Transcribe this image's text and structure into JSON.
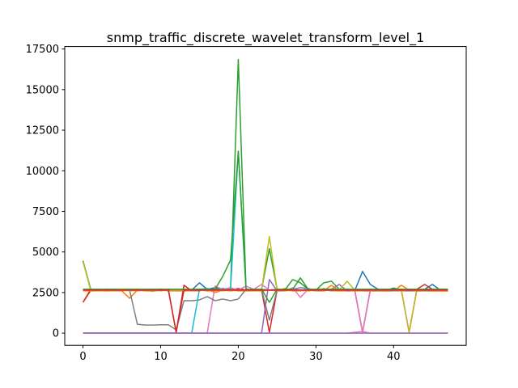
{
  "chart_data": {
    "type": "line",
    "title": "snmp_traffic_discrete_wavelet_transform_level_1",
    "xlabel": "",
    "ylabel": "",
    "xlim": [
      -2.35,
      49.35
    ],
    "ylim": [
      -750,
      17650
    ],
    "x_ticks": [
      0,
      10,
      20,
      30,
      40
    ],
    "y_ticks": [
      0,
      2500,
      5000,
      7500,
      10000,
      12500,
      15000,
      17500
    ],
    "x_tick_labels": [
      "0",
      "10",
      "20",
      "30",
      "40"
    ],
    "y_tick_labels": [
      "0",
      "2500",
      "5000",
      "7500",
      "10000",
      "12500",
      "15000",
      "17500"
    ],
    "grid": false,
    "legend": "none",
    "series": [
      {
        "color": "#1f77b4",
        "values": [
          4450,
          2700,
          2620,
          2660,
          2600,
          2640,
          2620,
          2620,
          2640,
          2590,
          2650,
          2620,
          2600,
          2640,
          2650,
          3100,
          2700,
          2800,
          2650,
          2700,
          2600,
          2650,
          2700,
          2600,
          2650,
          2700,
          2620,
          2700,
          2600,
          2650,
          2680,
          2700,
          2650,
          2600,
          2700,
          2620,
          3800,
          3000,
          2700,
          2620,
          2780,
          2650,
          2700,
          2630,
          2700,
          3000,
          2650,
          2650
        ]
      },
      {
        "color": "#ff7f0e",
        "values": [
          1900,
          2600,
          2600,
          2600,
          2600,
          2600,
          2150,
          2650,
          2600,
          2600,
          2700,
          2600,
          2600,
          2600,
          2600,
          2600,
          2700,
          2500,
          2650,
          2750,
          2600,
          2600,
          2600,
          2600,
          2650,
          2600,
          2750,
          2600,
          2600,
          2650,
          2600,
          2750,
          2600,
          2600,
          2600,
          2600,
          2600,
          2600,
          2600,
          2600,
          2600,
          2950,
          2650,
          2600,
          2600,
          2600,
          2600,
          2600
        ]
      },
      {
        "color": "#2ca02c",
        "values": [
          4450,
          2650,
          2700,
          2650,
          2700,
          2650,
          2700,
          2650,
          2650,
          2700,
          2650,
          2700,
          2650,
          2700,
          2650,
          2700,
          2700,
          2700,
          2650,
          2700,
          16850,
          2700,
          2650,
          2700,
          5200,
          2700,
          2650,
          3300,
          3100,
          2700,
          2650,
          3100,
          3200,
          2700,
          2650,
          2700,
          2650,
          2700,
          2650,
          2700,
          2650,
          2700,
          2650,
          2700,
          2650,
          2700,
          2650,
          2650
        ]
      },
      {
        "color": "#d62728",
        "values": [
          1900,
          2700,
          2650,
          2700,
          2650,
          2650,
          2650,
          2700,
          2600,
          2650,
          2700,
          2650,
          50,
          2950,
          2600,
          2650,
          2700,
          2650,
          2750,
          2650,
          2750,
          2650,
          2700,
          2650,
          50,
          2650,
          2700,
          2650,
          2600,
          2700,
          2650,
          2700,
          2650,
          2650,
          2700,
          2650,
          50,
          2650,
          2600,
          2650,
          2650,
          2650,
          50,
          2700,
          3000,
          2700,
          2650,
          2650
        ]
      },
      {
        "color": "#9467bd",
        "values": [
          0,
          0,
          0,
          0,
          0,
          0,
          0,
          0,
          0,
          0,
          0,
          0,
          0,
          0,
          0,
          0,
          0,
          0,
          0,
          0,
          0,
          0,
          0,
          0,
          3300,
          2600,
          2600,
          2700,
          2800,
          2750,
          2600,
          2600,
          2700,
          3000,
          2600,
          2650,
          2600,
          2600,
          2600,
          2600,
          2600,
          2600,
          2600,
          2600,
          2600,
          2600,
          2600,
          2600
        ]
      },
      {
        "color": "#8c564b",
        "values": [
          2650,
          2650,
          2650,
          2650,
          2650,
          2650,
          2650,
          2650,
          2650,
          2650,
          2650,
          2650,
          2650,
          2650,
          2650,
          2650,
          2650,
          2650,
          2650,
          2650,
          2650,
          2650,
          2650,
          2650,
          2650,
          2650,
          2650,
          2650,
          2650,
          2650,
          2650,
          2650,
          2650,
          2650,
          2650,
          2650,
          2650,
          2650,
          2650,
          2650,
          2650,
          2650,
          2650,
          2650,
          2650,
          2650,
          2650,
          2650
        ]
      },
      {
        "color": "#e377c2",
        "values": [
          0,
          0,
          0,
          0,
          0,
          0,
          0,
          0,
          0,
          0,
          0,
          0,
          0,
          0,
          0,
          0,
          0,
          2900,
          2700,
          2800,
          2650,
          2900,
          2700,
          3000,
          2650,
          2700,
          2600,
          2800,
          2200,
          2700,
          2650,
          2700,
          2600,
          2650,
          2700,
          2600,
          50,
          2700,
          2650,
          2700,
          2650,
          2600,
          2700,
          2650,
          2700,
          2650,
          2700,
          2700
        ]
      },
      {
        "color": "#7f7f7f",
        "values": [
          2650,
          2650,
          2650,
          2650,
          2650,
          2650,
          2650,
          550,
          500,
          500,
          520,
          520,
          200,
          2000,
          2000,
          2050,
          2250,
          2000,
          2100,
          2000,
          2100,
          2700,
          2650,
          2700,
          800,
          2650,
          2650,
          2700,
          2650,
          2650,
          2650,
          2700,
          2650,
          2650,
          2650,
          2650,
          2650,
          2650,
          2650,
          2650,
          2650,
          2650,
          2650,
          2650,
          2650,
          2650,
          2650,
          2650
        ]
      },
      {
        "color": "#bcbd22",
        "values": [
          4400,
          2650,
          2600,
          2650,
          2600,
          2650,
          2600,
          2650,
          2600,
          2650,
          2600,
          2650,
          2600,
          2650,
          2600,
          2650,
          2600,
          2650,
          2600,
          2650,
          2600,
          2650,
          2600,
          2650,
          5950,
          2650,
          2600,
          2650,
          2600,
          2650,
          2600,
          2650,
          2600,
          2650,
          3200,
          2650,
          2600,
          2650,
          2600,
          2650,
          2600,
          2650,
          50,
          2650,
          2600,
          2650,
          2600,
          2600
        ]
      },
      {
        "color": "#17becf",
        "values": [
          0,
          0,
          0,
          0,
          0,
          0,
          0,
          0,
          0,
          0,
          0,
          0,
          0,
          0,
          0,
          2700,
          2750,
          2650,
          2700,
          2650,
          11200,
          2700,
          2650,
          2700,
          2650,
          2700,
          2650,
          2700,
          2650,
          2700,
          2650,
          2700,
          2650,
          2700,
          2650,
          2700,
          2650,
          2700,
          2650,
          2700,
          2650,
          2700,
          2650,
          2700,
          2650,
          2700,
          2650,
          2700
        ]
      },
      {
        "color": "#1f77b4",
        "values": [
          2650,
          2650,
          2650,
          2650,
          2650,
          2650,
          2650,
          2650,
          2650,
          2650,
          2650,
          2650,
          2650,
          2650,
          2650,
          2650,
          2650,
          2650,
          2650,
          2650,
          2650,
          2650,
          2650,
          2650,
          2650,
          2650,
          2650,
          2650,
          2650,
          2650,
          2650,
          2650,
          2650,
          2650,
          2650,
          2650,
          2650,
          2650,
          2650,
          2650,
          2650,
          2650,
          2650,
          2650,
          2650,
          2650,
          2650,
          2650
        ]
      },
      {
        "color": "#ff7f0e",
        "values": [
          2600,
          2600,
          2650,
          2600,
          2650,
          2600,
          2650,
          2600,
          2650,
          2600,
          2650,
          2600,
          2650,
          2600,
          2650,
          2700,
          2600,
          2600,
          2650,
          2600,
          2650,
          2600,
          2650,
          2600,
          2650,
          2600,
          2650,
          2600,
          2650,
          2600,
          2650,
          2600,
          2950,
          2600,
          2650,
          2600,
          2650,
          2600,
          2650,
          2600,
          2650,
          2600,
          2650,
          2600,
          2650,
          2600,
          2600,
          2600
        ]
      },
      {
        "color": "#2ca02c",
        "values": [
          2700,
          2700,
          2700,
          2700,
          2700,
          2700,
          2700,
          2700,
          2700,
          2700,
          2700,
          2700,
          2700,
          2700,
          2700,
          2700,
          2700,
          2700,
          3500,
          4500,
          11200,
          2700,
          2700,
          2700,
          1900,
          2700,
          2700,
          2700,
          3400,
          2700,
          2700,
          2700,
          2700,
          2700,
          2700,
          2700,
          2700,
          2700,
          2700,
          2700,
          2700,
          2700,
          2700,
          2700,
          2700,
          2700,
          2700,
          2700
        ]
      },
      {
        "color": "#d62728",
        "values": [
          2650,
          2650,
          2650,
          2650,
          2650,
          2650,
          2650,
          2650,
          2650,
          2650,
          2650,
          2650,
          50,
          2650,
          2650,
          2650,
          2650,
          2650,
          2650,
          2650,
          2650,
          2650,
          2650,
          2650,
          2650,
          2650,
          2650,
          2650,
          2650,
          2650,
          2650,
          2650,
          2650,
          2650,
          2650,
          2650,
          2650,
          2650,
          2650,
          2650,
          2650,
          2650,
          2650,
          2650,
          2650,
          2650,
          2650,
          2650
        ]
      },
      {
        "color": "#e377c2",
        "values": [
          0,
          0,
          0,
          0,
          0,
          0,
          0,
          0,
          0,
          0,
          0,
          0,
          0,
          0,
          0,
          0,
          0,
          0,
          0,
          0,
          0,
          0,
          0,
          0,
          0,
          0,
          0,
          0,
          0,
          0,
          0,
          0,
          0,
          0,
          0,
          50,
          100,
          0,
          0,
          0,
          0,
          0,
          0,
          0,
          0,
          0,
          0,
          0
        ]
      },
      {
        "color": "#9467bd",
        "values": [
          0,
          0,
          0,
          0,
          0,
          0,
          0,
          0,
          0,
          0,
          0,
          0,
          0,
          0,
          0,
          0,
          0,
          0,
          0,
          0,
          0,
          0,
          0,
          0,
          0,
          0,
          0,
          0,
          0,
          0,
          0,
          0,
          0,
          0,
          0,
          0,
          0,
          0,
          0,
          0,
          0,
          0,
          0,
          0,
          0,
          0,
          0,
          0
        ]
      }
    ]
  }
}
